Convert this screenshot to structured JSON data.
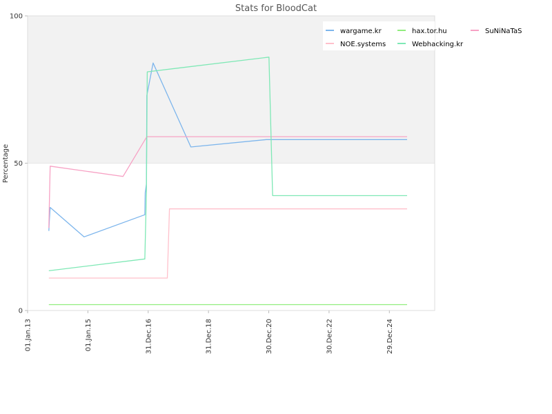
{
  "chart_data": {
    "type": "line",
    "title": "Stats for BloodCat",
    "ylabel": "Percentage",
    "xlabel": "",
    "ylim": [
      0,
      100
    ],
    "xlim": [
      "2013-01-01",
      "2026-07-01"
    ],
    "y_ticks": [
      "0",
      "50",
      "100"
    ],
    "x_ticks": [
      {
        "date": "2013-01-01",
        "label": "01.Jan.13"
      },
      {
        "date": "2015-01-01",
        "label": "01.Jan.15"
      },
      {
        "date": "2016-12-31",
        "label": "31.Dec.16"
      },
      {
        "date": "2018-12-31",
        "label": "31.Dec.18"
      },
      {
        "date": "2020-12-30",
        "label": "30.Dec.20"
      },
      {
        "date": "2022-12-30",
        "label": "30.Dec.22"
      },
      {
        "date": "2024-12-29",
        "label": "29.Dec.24"
      }
    ],
    "upper_band": [
      50,
      100
    ],
    "band_color": "#f2f2f2",
    "grid": false,
    "legend_position": "top-right",
    "series": [
      {
        "name": "wargame.kr",
        "color": "#7cb5ec",
        "points": [
          [
            "2013-09-15",
            27
          ],
          [
            "2013-09-20",
            30
          ],
          [
            "2013-10-01",
            35
          ],
          [
            "2014-11-15",
            25
          ],
          [
            "2016-11-20",
            32.5
          ],
          [
            "2016-11-25",
            40
          ],
          [
            "2016-12-10",
            43
          ],
          [
            "2016-12-15",
            73
          ],
          [
            "2017-03-01",
            84
          ],
          [
            "2018-06-01",
            55.5
          ],
          [
            "2020-12-01",
            58
          ],
          [
            "2025-08-01",
            58
          ]
        ]
      },
      {
        "name": "hax.tor.hu",
        "color": "#90ed7d",
        "points": [
          [
            "2013-09-15",
            2
          ],
          [
            "2025-08-01",
            2
          ]
        ]
      },
      {
        "name": "SuNiNaTaS",
        "color": "#f7a1c4",
        "points": [
          [
            "2013-09-15",
            28
          ],
          [
            "2013-10-01",
            49
          ],
          [
            "2016-03-01",
            45.5
          ],
          [
            "2016-12-15",
            59
          ],
          [
            "2025-08-01",
            59
          ]
        ]
      },
      {
        "name": "NOE.systems",
        "color": "#ffc0cb",
        "points": [
          [
            "2013-09-15",
            11
          ],
          [
            "2017-08-20",
            11
          ],
          [
            "2017-09-15",
            34.5
          ],
          [
            "2025-08-01",
            34.5
          ]
        ]
      },
      {
        "name": "Webhacking.kr",
        "color": "#7ee8b5",
        "points": [
          [
            "2013-09-15",
            13.5
          ],
          [
            "2016-11-20",
            17.5
          ],
          [
            "2016-12-10",
            40
          ],
          [
            "2016-12-20",
            81
          ],
          [
            "2021-01-01",
            86
          ],
          [
            "2021-02-15",
            39
          ],
          [
            "2025-08-01",
            39
          ]
        ]
      }
    ]
  }
}
